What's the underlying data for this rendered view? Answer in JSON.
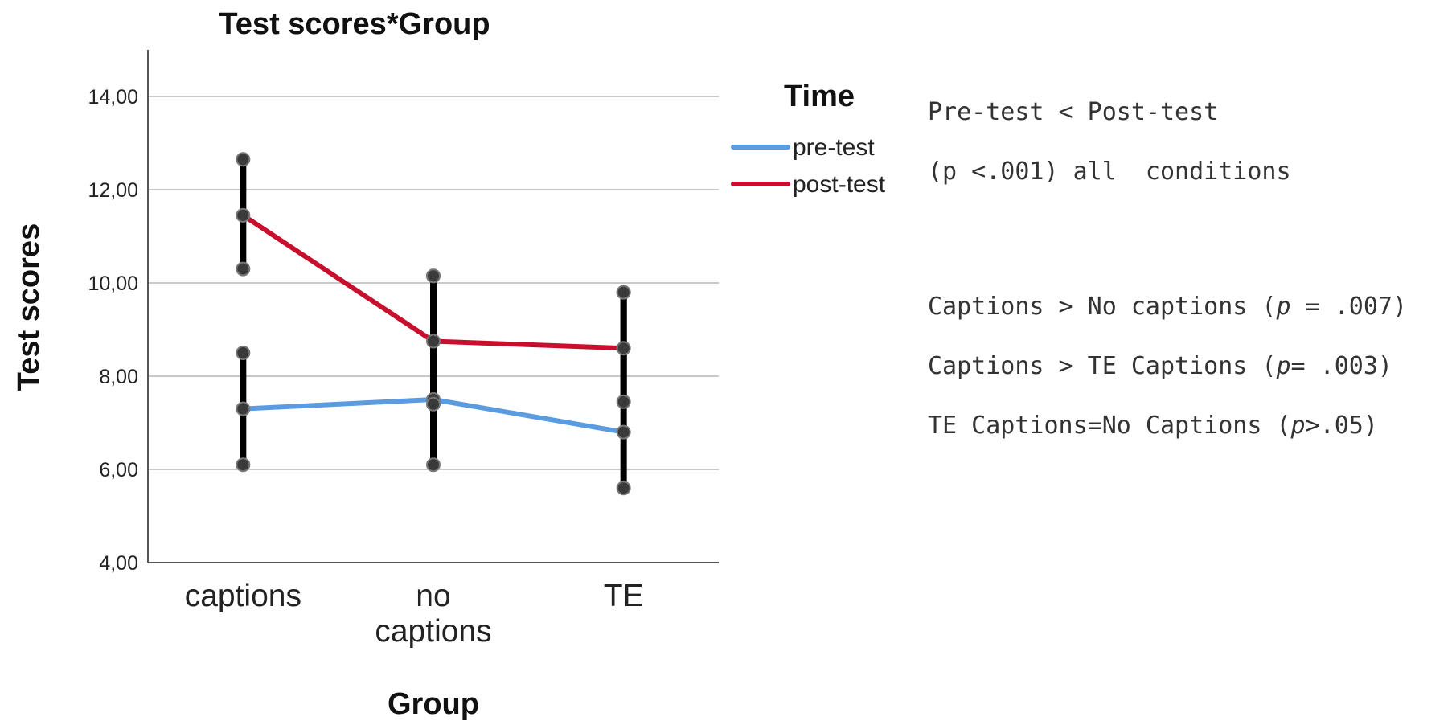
{
  "chart_data": {
    "type": "line",
    "title": "Test scores*Group",
    "xlabel": "Group",
    "ylabel": "Test scores",
    "categories": [
      [
        "captions"
      ],
      [
        "no",
        "captions"
      ],
      [
        "TE"
      ]
    ],
    "ylim": [
      4,
      15
    ],
    "yticks": [
      "4,00",
      "6,00",
      "8,00",
      "10,00",
      "12,00",
      "14,00"
    ],
    "ytick_values": [
      4,
      6,
      8,
      10,
      12,
      14
    ],
    "grid": true,
    "legend": {
      "title": "Time",
      "placement": "right"
    },
    "series": [
      {
        "name": "pre-test",
        "color": "#5b9be0",
        "values": [
          7.3,
          7.5,
          6.8
        ],
        "error_low": [
          6.1,
          6.1,
          5.6
        ],
        "error_high": [
          8.5,
          10.15,
          9.8
        ]
      },
      {
        "name": "post-test",
        "color": "#c8102e",
        "values": [
          11.45,
          8.75,
          8.6
        ],
        "error_low": [
          10.3,
          7.4,
          7.45
        ],
        "error_high": [
          12.65,
          10.15,
          9.8
        ]
      }
    ]
  },
  "notes": {
    "line1": "Pre-test < Post-test",
    "line2": "(p <.001) all  conditions",
    "line3": {
      "pre": "Captions > No captions (",
      "p": "p",
      "post": " = .007)"
    },
    "line4": {
      "pre": "Captions > TE Captions (",
      "p": "p",
      "post": "= .003)"
    },
    "line5": {
      "pre": "TE Captions=No Captions (",
      "p": "p",
      "post": ">.05)"
    }
  }
}
